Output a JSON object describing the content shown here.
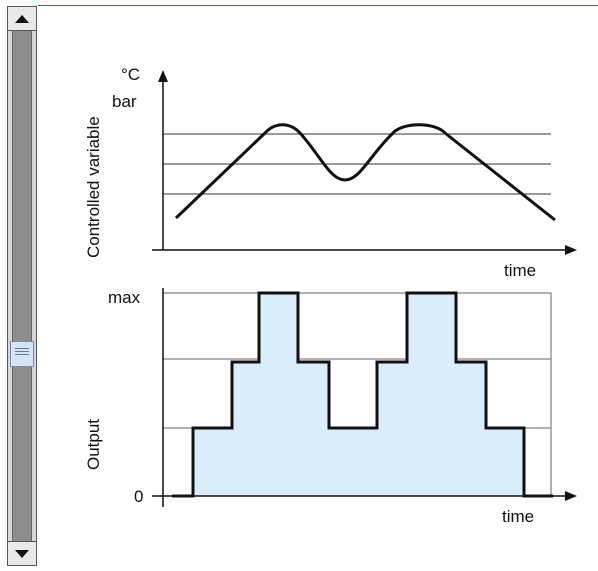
{
  "scrollbar": {
    "up_icon": "arrow-up-icon",
    "down_icon": "arrow-down-icon",
    "thumb_icon": "grip-icon"
  },
  "colors": {
    "accent_rule": "#e0243a",
    "fill": "#d9eefa",
    "line": "#111111"
  },
  "chart_data": [
    {
      "type": "line",
      "title": "",
      "ylabel": "Controlled variable",
      "yunit_top": "°C",
      "yunit_bottom": "bar",
      "xlabel": "time",
      "threshold_lines": 3,
      "description_points": "curve rises, plateaus at a peak, dips below the lowest band, peaks again, then falls"
    },
    {
      "type": "area",
      "ylabel": "Output",
      "xlabel": "time",
      "ytick_max": "max",
      "ytick_zero": "0",
      "levels": [
        0,
        1,
        2,
        3
      ],
      "steps": [
        0,
        1,
        2,
        3,
        2,
        1,
        2,
        3,
        2,
        1,
        0
      ]
    }
  ]
}
